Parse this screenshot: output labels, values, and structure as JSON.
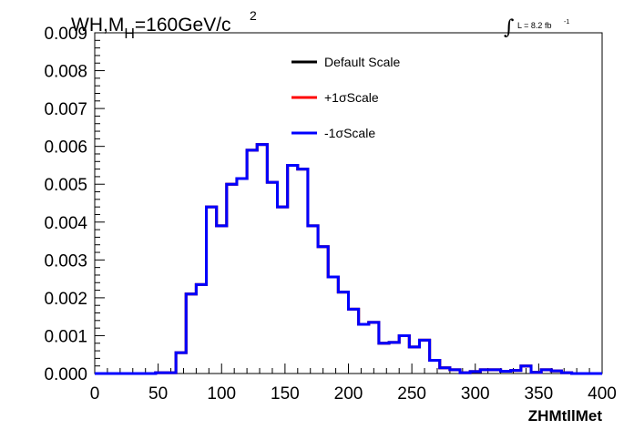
{
  "chart_data": {
    "type": "line",
    "title": {
      "main": "WH,M",
      "sub": "H",
      "rest": "=160GeV/c",
      "sup": "2"
    },
    "lumi": {
      "symbol": "∫",
      "text": "L = 8.2 fb",
      "sup": "-1"
    },
    "xlabel": "ZHMtllMet",
    "ylabel": "",
    "xlim": [
      0,
      400
    ],
    "ylim": [
      0,
      0.009
    ],
    "xticks": [
      "0",
      "50",
      "100",
      "150",
      "200",
      "250",
      "300",
      "350",
      "400"
    ],
    "yticks": [
      "0.000",
      "0.001",
      "0.002",
      "0.003",
      "0.004",
      "0.005",
      "0.006",
      "0.007",
      "0.008",
      "0.009"
    ],
    "legend_placement": "top-center",
    "bin_width": 8,
    "bin_edges_start": 0,
    "series": [
      {
        "name": "Default Scale",
        "color": "#000000",
        "values": [
          0,
          0,
          0,
          0,
          0,
          0,
          2e-05,
          2e-05,
          0.00055,
          0.0021,
          0.00235,
          0.0044,
          0.0039,
          0.005,
          0.00515,
          0.0059,
          0.00605,
          0.00505,
          0.0044,
          0.0055,
          0.0054,
          0.0039,
          0.00335,
          0.00255,
          0.00215,
          0.0017,
          0.0013,
          0.00135,
          0.0008,
          0.00082,
          0.001,
          0.0007,
          0.00088,
          0.00035,
          0.00015,
          0.0001,
          2e-05,
          5e-05,
          0.0001,
          0.0001,
          6e-05,
          8e-05,
          0.0002,
          3e-05,
          0.0001,
          7e-05,
          2e-05,
          0,
          0,
          0
        ]
      },
      {
        "name": "+1σScale",
        "color": "#ff0000",
        "values": [
          0,
          0,
          0,
          0,
          0,
          0,
          2e-05,
          2e-05,
          0.00055,
          0.0021,
          0.00235,
          0.0044,
          0.0039,
          0.005,
          0.00515,
          0.0059,
          0.00605,
          0.00505,
          0.0044,
          0.0055,
          0.0054,
          0.0039,
          0.00335,
          0.00255,
          0.00215,
          0.0017,
          0.0013,
          0.00135,
          0.0008,
          0.00082,
          0.001,
          0.0007,
          0.00088,
          0.00035,
          0.00015,
          0.0001,
          2e-05,
          5e-05,
          0.0001,
          0.0001,
          6e-05,
          8e-05,
          0.0002,
          3e-05,
          0.0001,
          7e-05,
          2e-05,
          0,
          0,
          0
        ]
      },
      {
        "name": "-1σScale",
        "color": "#0000ff",
        "values": [
          0,
          0,
          0,
          0,
          0,
          0,
          2e-05,
          2e-05,
          0.00055,
          0.0021,
          0.00235,
          0.0044,
          0.0039,
          0.005,
          0.00515,
          0.0059,
          0.00605,
          0.00505,
          0.0044,
          0.0055,
          0.0054,
          0.0039,
          0.00335,
          0.00255,
          0.00215,
          0.0017,
          0.0013,
          0.00135,
          0.0008,
          0.00082,
          0.001,
          0.0007,
          0.00088,
          0.00035,
          0.00015,
          0.0001,
          2e-05,
          5e-05,
          0.0001,
          0.0001,
          6e-05,
          8e-05,
          0.0002,
          3e-05,
          0.0001,
          7e-05,
          2e-05,
          0,
          0,
          0
        ]
      }
    ]
  }
}
